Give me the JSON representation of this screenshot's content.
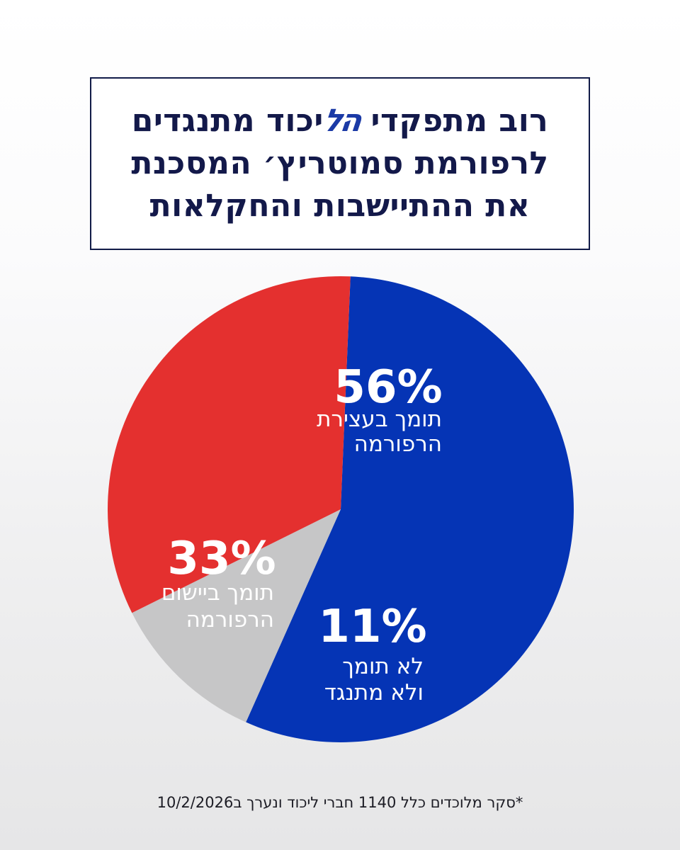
{
  "title": {
    "line1_before_logo": "רוב מתפקדי ",
    "logo_text": "הל",
    "line1_after_logo": "יכוד מתנגדים",
    "line2": "לרפורמת סמוטריץ׳ המסכנת",
    "line3": "את ההתיישבות והחקלאות"
  },
  "chart_data": {
    "type": "pie",
    "slices": [
      {
        "percent_label": "56%",
        "value": 56,
        "label_lines": [
          "תומך בעצירת",
          "הרפורמה"
        ],
        "color": "#0534b5"
      },
      {
        "percent_label": "11%",
        "value": 11,
        "label_lines": [
          "לא תומך",
          "ולא מתנגד"
        ],
        "color": "#c6c6c7"
      },
      {
        "percent_label": "33%",
        "value": 33,
        "label_lines": [
          "תומך ביישום",
          "הרפורמה"
        ],
        "color": "#e4302f"
      }
    ]
  },
  "footnote": "*סקר מלוכדים כלל 1140 חברי ליכוד ונערך ב10/2/2026"
}
